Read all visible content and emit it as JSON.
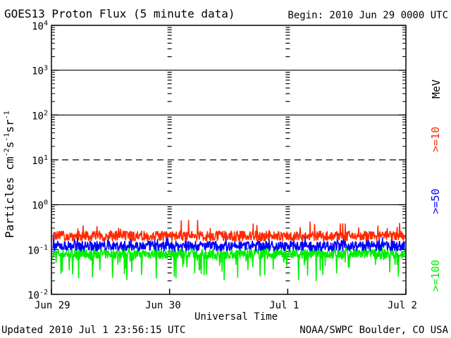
{
  "header": {
    "title": "GOES13 Proton Flux (5 minute data)",
    "begin": "Begin: 2010 Jun 29 0000 UTC"
  },
  "footer": {
    "updated": "Updated 2010 Jul  1 23:56:15 UTC",
    "source": "NOAA/SWPC Boulder, CO USA"
  },
  "chart_data": {
    "type": "line",
    "title": "GOES13 Proton Flux (5 minute data)",
    "xlabel": "Universal Time",
    "ylabel": "Particles cm-2 s-1 sr-1",
    "yscale": "log",
    "ylim": [
      0.01,
      10000
    ],
    "x_ticks": [
      "Jun 29",
      "Jun 30",
      "Jul 1",
      "Jul 2"
    ],
    "y_ticks": [
      "10^-2",
      "10^-1",
      "10^0",
      "10^1",
      "10^2",
      "10^3",
      "10^4"
    ],
    "unit_label": "MeV",
    "threshold_lines": [
      {
        "value": 1,
        "style": "solid"
      },
      {
        "value": 10,
        "style": "dashed"
      },
      {
        "value": 100,
        "style": "solid"
      },
      {
        "value": 1000,
        "style": "solid"
      }
    ],
    "series": [
      {
        "name": ">=10",
        "color": "#ff2a00",
        "typical_value": 0.2,
        "range": [
          0.12,
          0.45
        ]
      },
      {
        "name": ">=50",
        "color": "#0000ff",
        "typical_value": 0.12,
        "range": [
          0.07,
          0.25
        ]
      },
      {
        "name": ">=100",
        "color": "#00ee00",
        "typical_value": 0.08,
        "range": [
          0.02,
          0.13
        ]
      }
    ]
  }
}
